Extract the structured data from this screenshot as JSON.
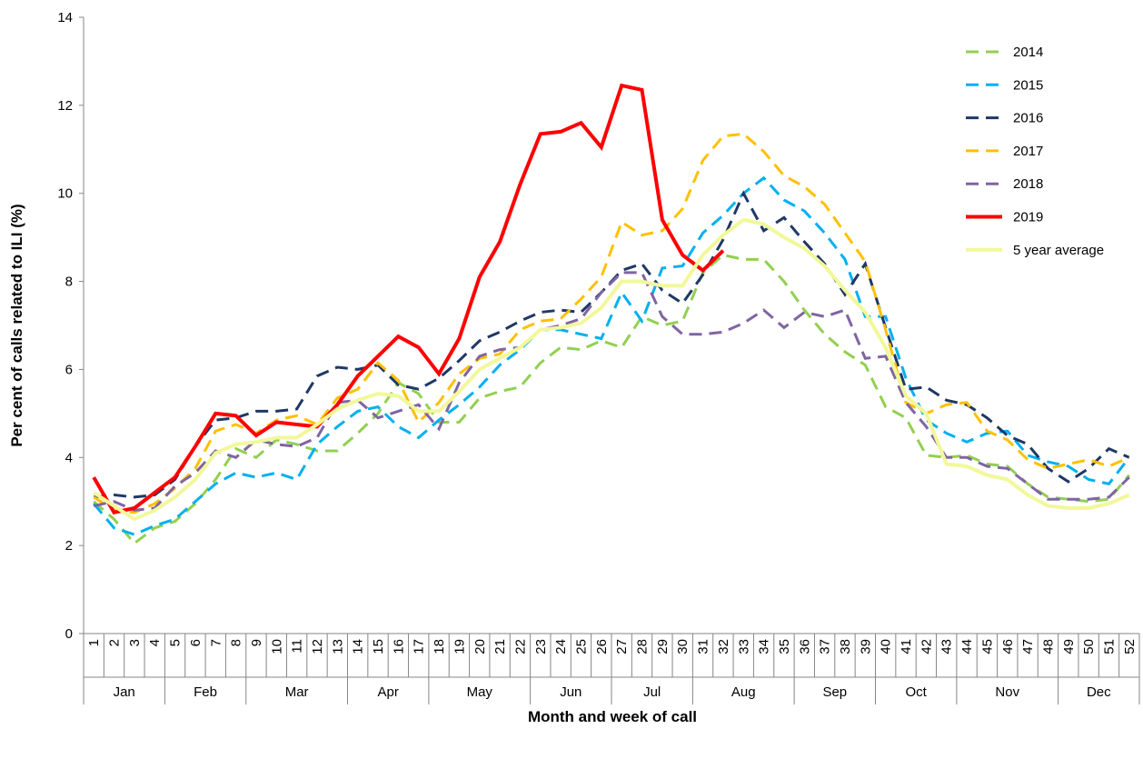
{
  "chart_data": {
    "type": "line",
    "y_label": "Per cent of calls related to ILI (%)",
    "x_label": "Month and week of call",
    "categories": [
      "1",
      "2",
      "3",
      "4",
      "5",
      "6",
      "7",
      "8",
      "9",
      "10",
      "11",
      "12",
      "13",
      "14",
      "15",
      "16",
      "17",
      "18",
      "19",
      "20",
      "21",
      "22",
      "23",
      "24",
      "25",
      "26",
      "27",
      "28",
      "29",
      "30",
      "31",
      "32",
      "33",
      "34",
      "35",
      "36",
      "37",
      "38",
      "39",
      "40",
      "41",
      "42",
      "43",
      "44",
      "45",
      "46",
      "47",
      "48",
      "49",
      "50",
      "51",
      "52"
    ],
    "months": [
      "Jan",
      null,
      null,
      null,
      "Feb",
      null,
      null,
      null,
      "Mar",
      null,
      null,
      null,
      null,
      "Apr",
      null,
      null,
      null,
      "May",
      null,
      null,
      null,
      null,
      "Jun",
      null,
      null,
      null,
      "Jul",
      null,
      null,
      null,
      "Aug",
      null,
      null,
      null,
      null,
      "Sep",
      null,
      null,
      null,
      "Oct",
      null,
      null,
      null,
      "Nov",
      null,
      null,
      null,
      null,
      "Dec",
      null,
      null,
      null
    ],
    "ylim": [
      0,
      14
    ],
    "yticks": [
      0,
      2,
      4,
      6,
      8,
      10,
      12,
      14
    ],
    "grid": false,
    "legend": "upper right",
    "series": [
      {
        "name": "2014",
        "color": "#92d050",
        "dashed": true,
        "values": [
          3.0,
          2.6,
          2.05,
          2.4,
          2.55,
          2.95,
          3.5,
          4.2,
          4.0,
          4.4,
          4.3,
          4.15,
          4.15,
          4.55,
          5.0,
          5.7,
          5.45,
          4.8,
          4.8,
          5.35,
          5.5,
          5.6,
          6.15,
          6.5,
          6.45,
          6.65,
          6.5,
          7.2,
          7.0,
          7.1,
          8.2,
          8.6,
          8.5,
          8.5,
          8.0,
          7.35,
          6.8,
          6.4,
          6.1,
          5.15,
          4.9,
          4.05,
          4.0,
          4.05,
          3.85,
          3.8,
          3.4,
          3.1,
          3.05,
          3.0,
          3.05,
          3.6
        ]
      },
      {
        "name": "2015",
        "color": "#00b0f0",
        "dashed": true,
        "values": [
          2.95,
          2.4,
          2.25,
          2.45,
          2.6,
          3.0,
          3.4,
          3.65,
          3.55,
          3.65,
          3.5,
          4.3,
          4.7,
          5.05,
          5.15,
          4.7,
          4.45,
          4.85,
          5.2,
          5.6,
          6.1,
          6.45,
          6.9,
          6.9,
          6.8,
          6.7,
          7.75,
          7.1,
          8.3,
          8.35,
          9.1,
          9.5,
          10.0,
          10.35,
          9.85,
          9.6,
          9.1,
          8.5,
          7.2,
          7.2,
          5.8,
          4.85,
          4.55,
          4.35,
          4.55,
          4.6,
          4.05,
          3.9,
          3.8,
          3.5,
          3.4,
          4.0
        ]
      },
      {
        "name": "2016",
        "color": "#1f3864",
        "dashed": true,
        "values": [
          3.1,
          3.15,
          3.1,
          3.15,
          3.5,
          4.25,
          4.85,
          4.9,
          5.05,
          5.05,
          5.1,
          5.85,
          6.05,
          6.0,
          6.1,
          5.65,
          5.55,
          5.8,
          6.2,
          6.65,
          6.85,
          7.1,
          7.3,
          7.35,
          7.3,
          7.75,
          8.25,
          8.4,
          7.8,
          7.5,
          8.15,
          8.95,
          10.0,
          9.15,
          9.45,
          8.9,
          8.4,
          7.7,
          8.4,
          6.95,
          5.55,
          5.6,
          5.3,
          5.2,
          4.9,
          4.5,
          4.3,
          3.75,
          3.45,
          3.75,
          4.2,
          4.0
        ]
      },
      {
        "name": "2017",
        "color": "#ffc000",
        "dashed": true,
        "values": [
          3.1,
          2.8,
          2.75,
          2.95,
          3.3,
          3.75,
          4.6,
          4.75,
          4.55,
          4.85,
          4.95,
          4.75,
          5.35,
          5.55,
          6.15,
          5.75,
          4.8,
          5.25,
          5.9,
          6.25,
          6.35,
          6.9,
          7.1,
          7.15,
          7.6,
          8.1,
          9.35,
          9.05,
          9.15,
          9.65,
          10.75,
          11.3,
          11.35,
          10.95,
          10.4,
          10.15,
          9.75,
          9.1,
          8.45,
          6.9,
          5.25,
          5.0,
          5.2,
          5.25,
          4.6,
          4.4,
          3.95,
          3.75,
          3.85,
          3.95,
          3.8,
          4.0
        ]
      },
      {
        "name": "2018",
        "color": "#8064a2",
        "dashed": true,
        "values": [
          2.9,
          3.0,
          2.8,
          2.85,
          3.35,
          3.65,
          4.15,
          4.0,
          4.4,
          4.3,
          4.25,
          4.45,
          5.25,
          5.3,
          4.9,
          5.05,
          5.2,
          4.65,
          5.7,
          6.3,
          6.45,
          6.5,
          6.9,
          7.0,
          7.15,
          7.75,
          8.2,
          8.2,
          7.2,
          6.8,
          6.8,
          6.85,
          7.05,
          7.35,
          6.95,
          7.3,
          7.2,
          7.35,
          6.25,
          6.3,
          5.25,
          4.7,
          4.0,
          4.0,
          3.8,
          3.75,
          3.4,
          3.05,
          3.05,
          3.05,
          3.1,
          3.55
        ]
      },
      {
        "name": "2019",
        "color": "#ff0000",
        "dashed": false,
        "width": 4,
        "values": [
          3.55,
          2.75,
          2.85,
          3.2,
          3.55,
          4.25,
          5.0,
          4.95,
          4.5,
          4.8,
          4.75,
          4.7,
          5.2,
          5.85,
          6.3,
          6.75,
          6.5,
          5.9,
          6.7,
          8.1,
          8.9,
          10.2,
          11.35,
          11.4,
          11.6,
          11.05,
          12.45,
          12.35,
          9.4,
          8.6,
          8.25,
          8.7,
          null,
          null,
          null,
          null,
          null,
          null,
          null,
          null,
          null,
          null,
          null,
          null,
          null,
          null,
          null,
          null,
          null,
          null,
          null,
          null
        ]
      },
      {
        "name": "5 year average",
        "color": "#f2f89a",
        "dashed": false,
        "width": 4,
        "values": [
          3.2,
          2.9,
          2.6,
          2.8,
          3.1,
          3.5,
          4.1,
          4.3,
          4.35,
          4.45,
          4.45,
          4.75,
          5.1,
          5.3,
          5.45,
          5.4,
          5.05,
          5.05,
          5.5,
          6.0,
          6.25,
          6.5,
          6.9,
          6.95,
          7.05,
          7.4,
          8.0,
          8.0,
          7.9,
          7.9,
          8.6,
          9.05,
          9.4,
          9.3,
          9.0,
          8.75,
          8.35,
          7.8,
          7.3,
          6.5,
          5.4,
          5.0,
          3.85,
          3.8,
          3.6,
          3.5,
          3.15,
          2.9,
          2.85,
          2.85,
          2.95,
          3.15
        ]
      }
    ]
  }
}
